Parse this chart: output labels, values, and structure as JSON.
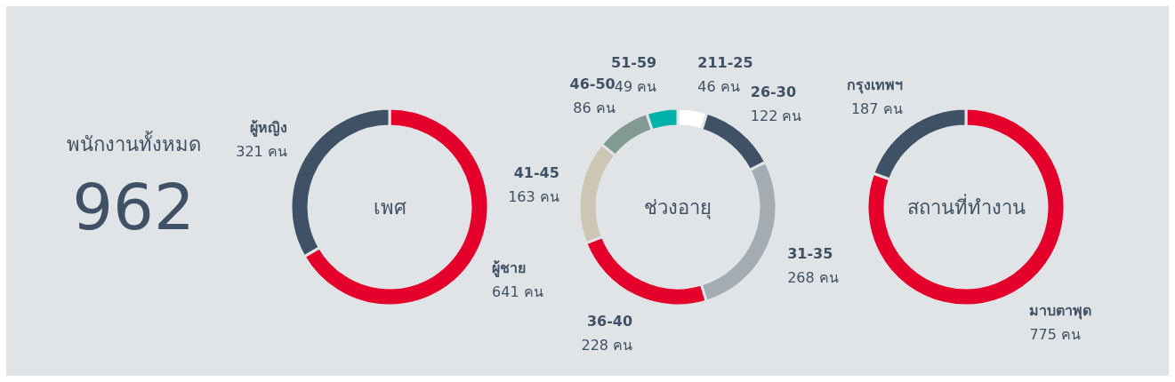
{
  "chart_data": [
    {
      "type": "other",
      "title": "พนักงานทั้งหมด",
      "annotations": [
        "962"
      ]
    },
    {
      "type": "donut",
      "title": "เพศ",
      "categories": [
        "ผู้ชาย",
        "ผู้หญิง"
      ],
      "values": [
        641,
        321
      ],
      "colors": [
        "#e4002b",
        "#3f5164"
      ],
      "value_labels": [
        "641 คน",
        "321 คน"
      ]
    },
    {
      "type": "donut",
      "title": "ช่วงอายุ",
      "categories": [
        "211-25",
        "26-30",
        "31-35",
        "36-40",
        "41-45",
        "46-50",
        "51-59"
      ],
      "values": [
        46,
        122,
        268,
        228,
        163,
        86,
        49
      ],
      "colors": [
        "#ffffff",
        "#3f5164",
        "#a3abb3",
        "#e4002b",
        "#cdc6b5",
        "#829a94",
        "#00b2a9"
      ],
      "value_labels": [
        "46 คน",
        "122 คน",
        "268 คน",
        "228 คน",
        "163 คน",
        "86 คน",
        "49 คน"
      ]
    },
    {
      "type": "donut",
      "title": "สถานที่ทำงาน",
      "categories": [
        "มาบตาพุด",
        "กรุงเทพฯ"
      ],
      "values": [
        775,
        187
      ],
      "colors": [
        "#e4002b",
        "#3f5164"
      ],
      "value_labels": [
        "775 คน",
        "187 คน"
      ]
    }
  ]
}
